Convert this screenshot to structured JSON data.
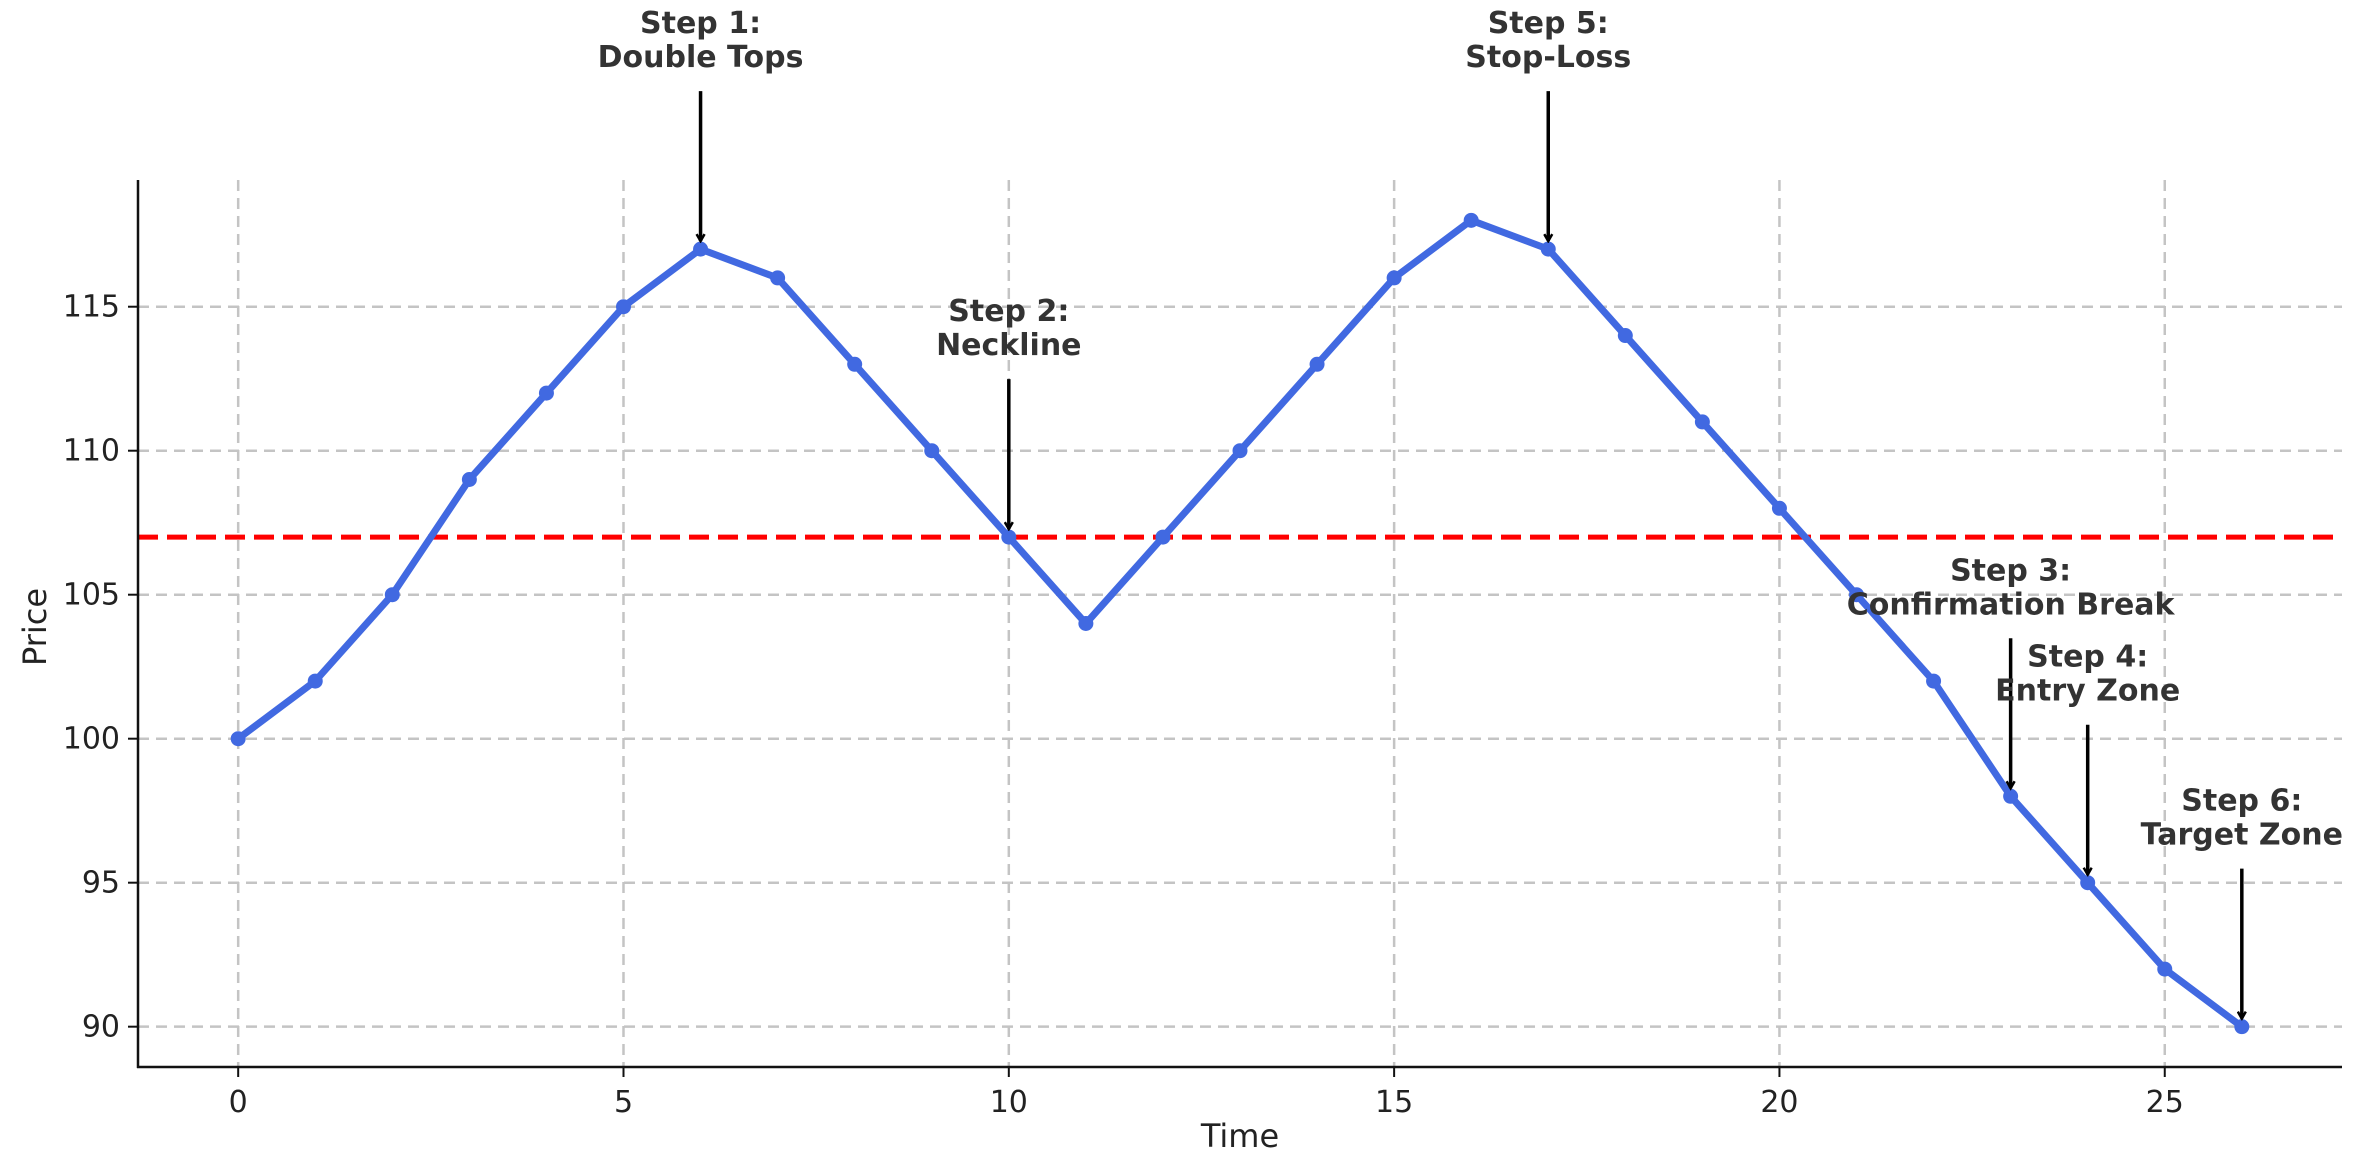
{
  "chart_data": {
    "type": "line",
    "xlabel": "Time",
    "ylabel": "Price",
    "xlim": [
      -1.3,
      27.3
    ],
    "ylim": [
      88.6,
      119.4
    ],
    "x_ticks": [
      0,
      5,
      10,
      15,
      20,
      25
    ],
    "y_ticks": [
      90,
      95,
      100,
      105,
      110,
      115
    ],
    "grid": true,
    "legend": "none",
    "x": [
      0,
      1,
      2,
      3,
      4,
      5,
      6,
      7,
      8,
      9,
      10,
      11,
      12,
      13,
      14,
      15,
      16,
      17,
      18,
      19,
      20,
      21,
      22,
      23,
      24,
      25,
      26
    ],
    "series": [
      {
        "values": [
          100,
          102,
          105,
          109,
          112,
          115,
          117,
          116,
          113,
          110,
          107,
          104,
          107,
          110,
          113,
          116,
          118,
          117,
          114,
          111,
          108,
          105,
          102,
          98,
          95,
          92,
          90
        ],
        "color": "#4169E1"
      }
    ],
    "reference_line": {
      "y": 107,
      "color": "#FF0000",
      "style": "dashed"
    },
    "annotations": [
      {
        "lines": [
          "Step 1:",
          "Double Tops"
        ],
        "x": 6,
        "y": 117
      },
      {
        "lines": [
          "Step 2:",
          "Neckline"
        ],
        "x": 10,
        "y": 107
      },
      {
        "lines": [
          "Step 3:",
          "Confirmation Break"
        ],
        "x": 23,
        "y": 98
      },
      {
        "lines": [
          "Step 4:",
          "Entry Zone"
        ],
        "x": 24,
        "y": 95
      },
      {
        "lines": [
          "Step 5:",
          "Stop-Loss"
        ],
        "x": 17,
        "y": 117
      },
      {
        "lines": [
          "Step 6:",
          "Target Zone"
        ],
        "x": 26,
        "y": 90
      }
    ]
  }
}
